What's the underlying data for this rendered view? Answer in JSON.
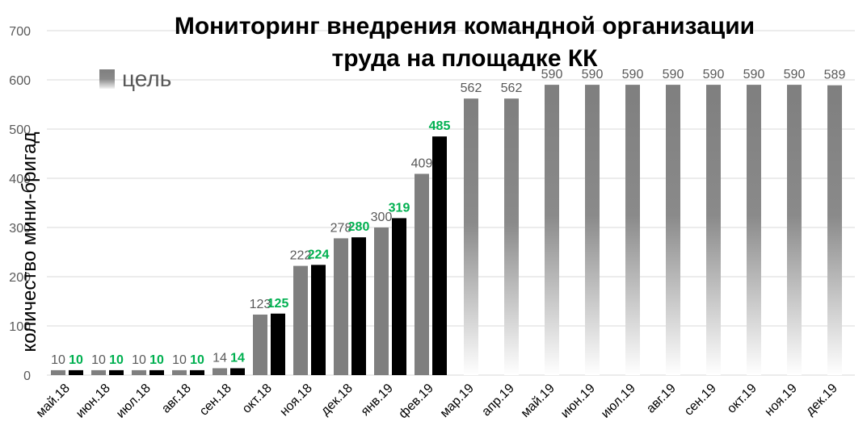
{
  "chart_data": {
    "type": "bar",
    "title_lines": [
      "Мониторинг внедрения командной организации",
      "труда на площадке КК"
    ],
    "ylabel": "количество мини-бригад",
    "xlabel": "",
    "ylim": [
      0,
      700
    ],
    "yticks": [
      0,
      100,
      200,
      300,
      400,
      500,
      600,
      700
    ],
    "grid": true,
    "legend_position": "top-left",
    "categories": [
      "май.18",
      "июн.18",
      "июл.18",
      "авг.18",
      "сен.18",
      "окт.18",
      "ноя.18",
      "дек.18",
      "янв.19",
      "фев.19",
      "мар.19",
      "апр.19",
      "май.19",
      "июн.19",
      "июл.19",
      "авг.19",
      "сен.19",
      "окт.19",
      "ноя.19",
      "дек.19"
    ],
    "series": [
      {
        "name": "цель",
        "color": "#7f7f7f",
        "values": [
          10,
          10,
          10,
          10,
          14,
          123,
          222,
          278,
          300,
          409,
          562,
          562,
          590,
          590,
          590,
          590,
          590,
          590,
          590,
          589
        ]
      },
      {
        "name": "",
        "color": "#000000",
        "label_color": "#00b050",
        "values": [
          10,
          10,
          10,
          10,
          14,
          125,
          224,
          280,
          319,
          485,
          null,
          null,
          null,
          null,
          null,
          null,
          null,
          null,
          null,
          null
        ]
      }
    ]
  }
}
